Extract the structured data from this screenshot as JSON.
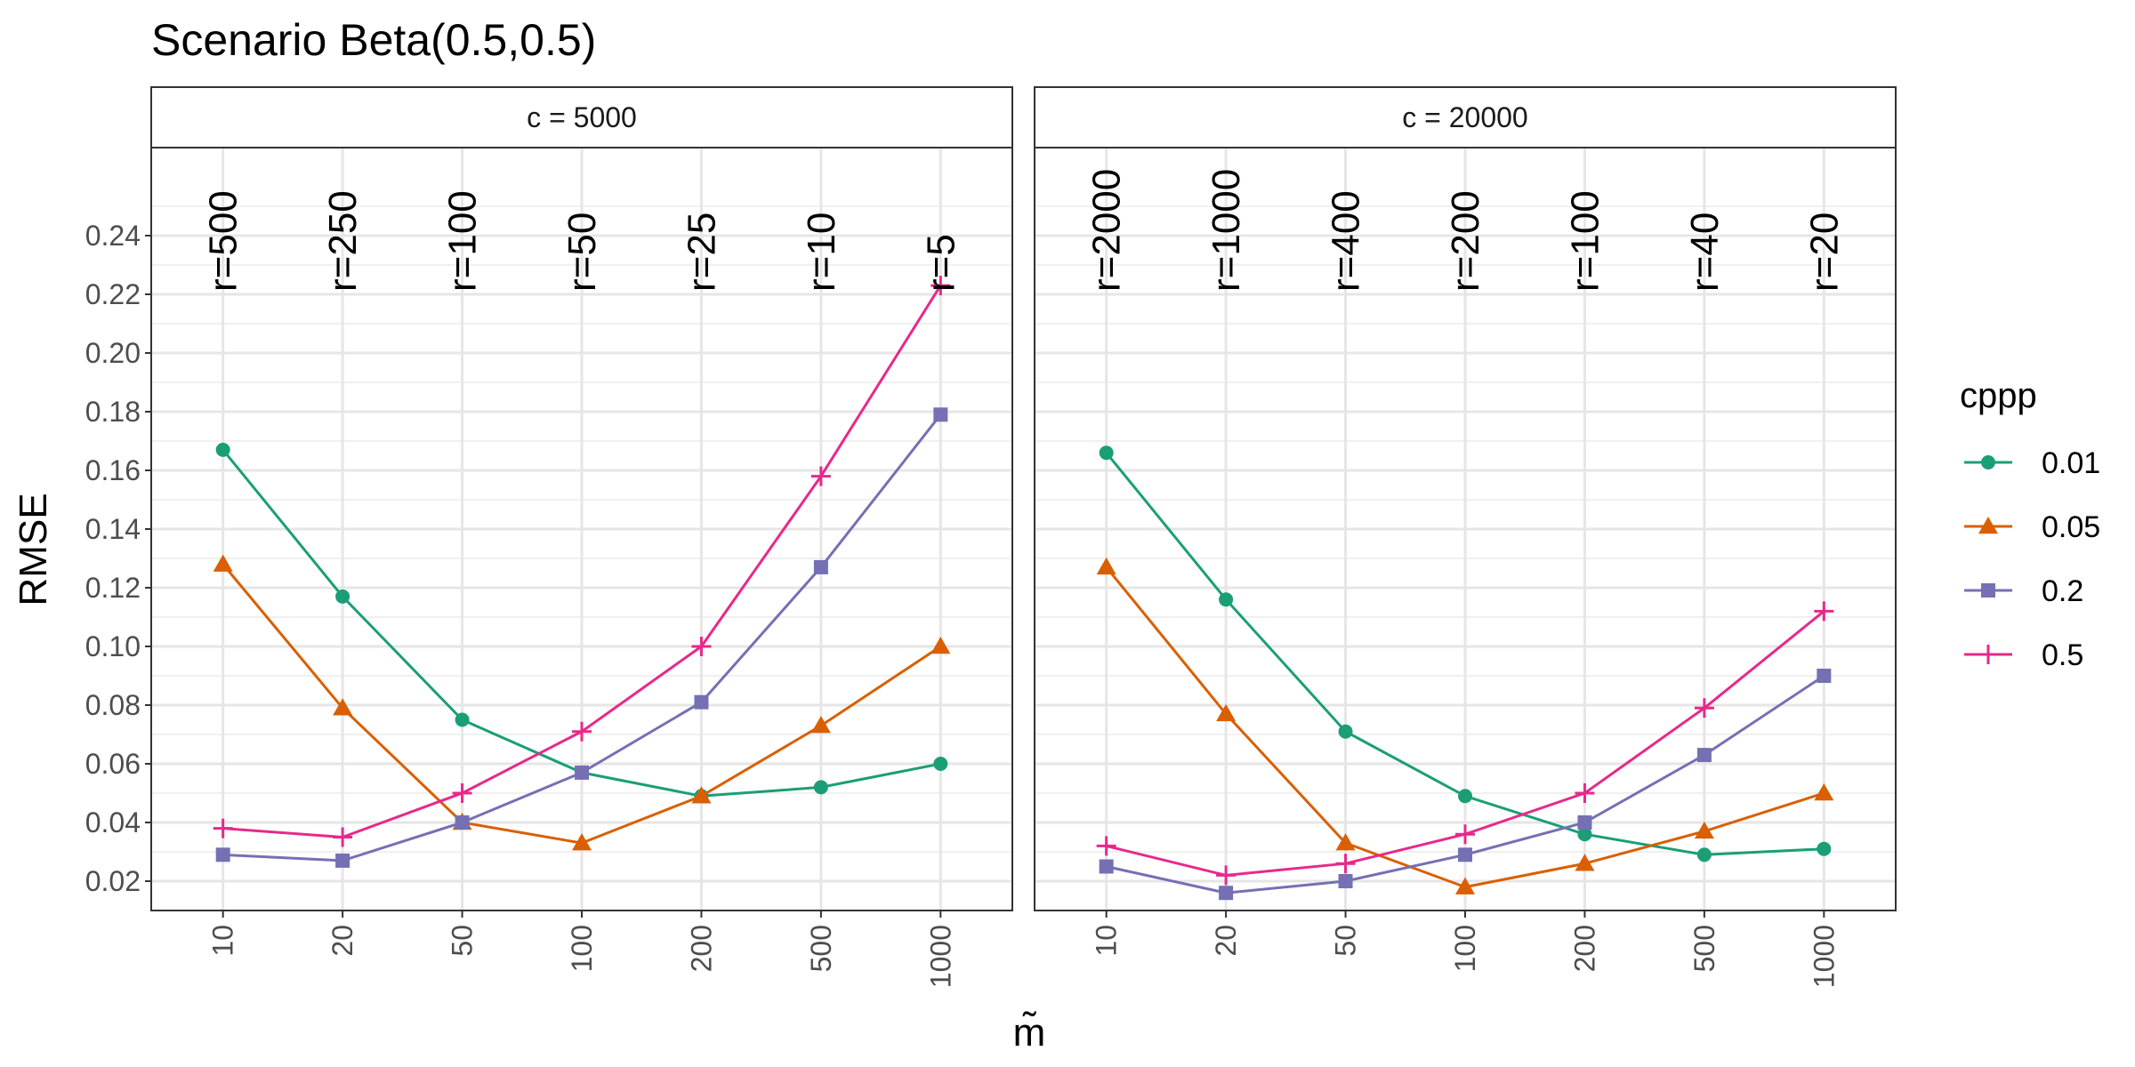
{
  "title": "Scenario Beta(0.5,0.5)",
  "y_axis_label": "RMSE",
  "x_axis_label": "m̃",
  "legend": {
    "title": "cppp",
    "entries": [
      {
        "label": "0.01",
        "color": "#1b9e77",
        "shape": "circle"
      },
      {
        "label": "0.05",
        "color": "#d95f02",
        "shape": "triangle"
      },
      {
        "label": "0.2",
        "color": "#7570b3",
        "shape": "square"
      },
      {
        "label": "0.5",
        "color": "#e7298a",
        "shape": "plus"
      }
    ]
  },
  "chart_data": [
    {
      "type": "line",
      "facet": "c = 5000",
      "categories": [
        "10",
        "20",
        "50",
        "100",
        "200",
        "500",
        "1000"
      ],
      "annotations": [
        "r=500",
        "r=250",
        "r=100",
        "r=50",
        "r=25",
        "r=10",
        "r=5"
      ],
      "y_ticks": [
        "0.02",
        "0.04",
        "0.06",
        "0.08",
        "0.10",
        "0.12",
        "0.14",
        "0.16",
        "0.18",
        "0.20",
        "0.22",
        "0.24"
      ],
      "ylim": [
        0.01,
        0.27
      ],
      "series": [
        {
          "name": "0.01",
          "values": [
            0.167,
            0.117,
            0.075,
            0.057,
            0.049,
            0.052,
            0.06
          ]
        },
        {
          "name": "0.05",
          "values": [
            0.128,
            0.079,
            0.04,
            0.033,
            0.049,
            0.073,
            0.1
          ]
        },
        {
          "name": "0.2",
          "values": [
            0.029,
            0.027,
            0.04,
            0.057,
            0.081,
            0.127,
            0.179
          ]
        },
        {
          "name": "0.5",
          "values": [
            0.038,
            0.035,
            0.05,
            0.071,
            0.1,
            0.158,
            0.223
          ]
        }
      ]
    },
    {
      "type": "line",
      "facet": "c = 20000",
      "categories": [
        "10",
        "20",
        "50",
        "100",
        "200",
        "500",
        "1000"
      ],
      "annotations": [
        "r=2000",
        "r=1000",
        "r=400",
        "r=200",
        "r=100",
        "r=40",
        "r=20"
      ],
      "y_ticks": [
        "0.02",
        "0.04",
        "0.06",
        "0.08",
        "0.10",
        "0.12",
        "0.14",
        "0.16",
        "0.18",
        "0.20",
        "0.22",
        "0.24"
      ],
      "ylim": [
        0.01,
        0.27
      ],
      "series": [
        {
          "name": "0.01",
          "values": [
            0.166,
            0.116,
            0.071,
            0.049,
            0.036,
            0.029,
            0.031
          ]
        },
        {
          "name": "0.05",
          "values": [
            0.127,
            0.077,
            0.033,
            0.018,
            0.026,
            0.037,
            0.05
          ]
        },
        {
          "name": "0.2",
          "values": [
            0.025,
            0.016,
            0.02,
            0.029,
            0.04,
            0.063,
            0.09
          ]
        },
        {
          "name": "0.5",
          "values": [
            0.032,
            0.022,
            0.026,
            0.036,
            0.05,
            0.079,
            0.112
          ]
        }
      ]
    }
  ]
}
